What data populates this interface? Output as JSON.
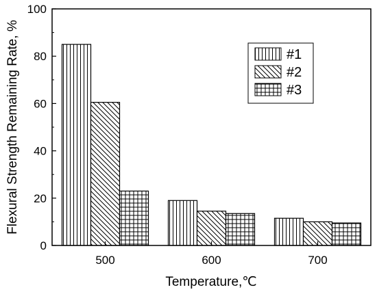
{
  "chart_data": {
    "type": "bar",
    "xlabel": "Temperature,℃",
    "ylabel": "Flexural Strength Remaining Rate, %",
    "categories": [
      "500",
      "600",
      "700"
    ],
    "ylim": [
      0,
      100
    ],
    "yticks": [
      0,
      20,
      40,
      60,
      80,
      100
    ],
    "series": [
      {
        "name": "#1",
        "values": [
          85,
          19,
          11.5
        ],
        "pattern": "vertical-lines"
      },
      {
        "name": "#2",
        "values": [
          60.5,
          14.5,
          10
        ],
        "pattern": "diagonal-lines"
      },
      {
        "name": "#3",
        "values": [
          23,
          13.5,
          9.5
        ],
        "pattern": "grid"
      }
    ],
    "legend_position": "top-right",
    "grid": false,
    "colors": {
      "stroke": "#000000",
      "fill": "#ffffff"
    }
  }
}
